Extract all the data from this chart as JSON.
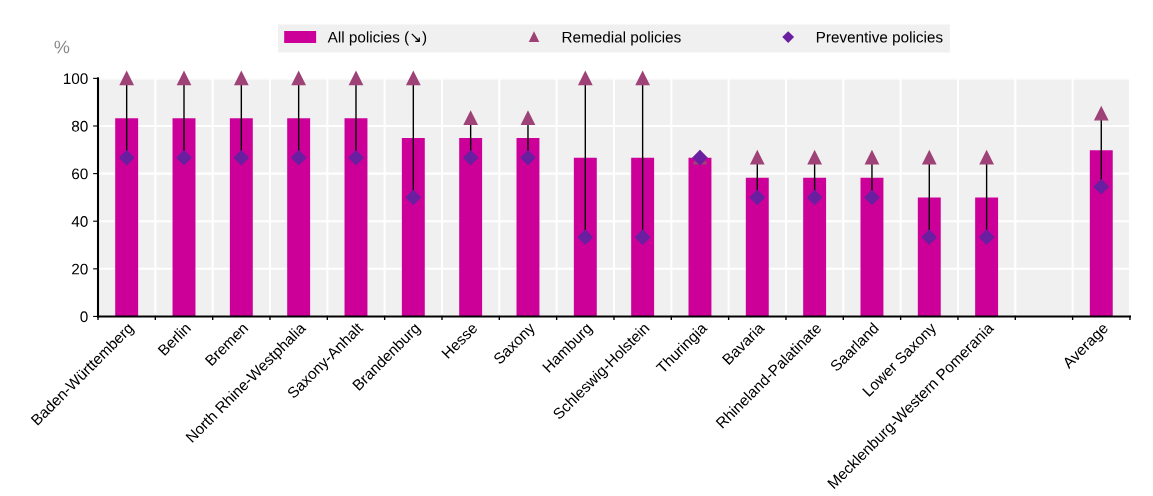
{
  "chart_data": {
    "type": "bar",
    "ylabel": "%",
    "categories": [
      "Baden-Württemberg",
      "Berlin",
      "Bremen",
      "North Rhine-Westphalia",
      "Saxony-Anhalt",
      "Brandenburg",
      "Hesse",
      "Saxony",
      "Hamburg",
      "Schleswig-Holstein",
      "Thuringia",
      "Bavaria",
      "Rhineland-Palatinate",
      "Saarland",
      "Lower Saxony",
      "Mecklenburg-Western Pomerania",
      null,
      "Average"
    ],
    "series": [
      {
        "name": "All policies (↘)",
        "color": "#cc0099",
        "values": [
          83.3,
          83.3,
          83.3,
          83.3,
          83.3,
          75,
          75,
          75,
          66.7,
          66.7,
          66.7,
          58.3,
          58.3,
          58.3,
          50,
          50,
          null,
          69.8
        ]
      },
      {
        "name": "Remedial policies",
        "type": "scatter",
        "marker": "triangle",
        "color": "#9e4277",
        "values": [
          100,
          100,
          100,
          100,
          100,
          100,
          83.3,
          83.3,
          100,
          100,
          66.7,
          66.7,
          66.7,
          66.7,
          66.7,
          66.7,
          null,
          85.2
        ]
      },
      {
        "name": "Preventive policies",
        "type": "scatter",
        "marker": "diamond",
        "color": "#6a1fa0",
        "values": [
          66.7,
          66.7,
          66.7,
          66.7,
          66.7,
          50,
          66.7,
          66.7,
          33.3,
          33.3,
          66.7,
          50,
          50,
          50,
          33.3,
          33.3,
          null,
          54.5
        ]
      }
    ],
    "ylim": [
      0,
      100
    ],
    "yticks": [
      0,
      20,
      40,
      60,
      80,
      100
    ],
    "grid": true,
    "legend": "top"
  }
}
